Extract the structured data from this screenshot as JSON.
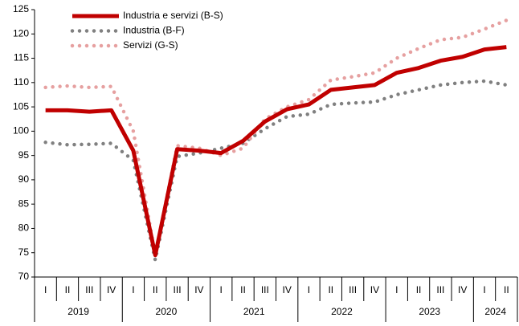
{
  "chart_data": {
    "type": "line",
    "categories": [
      "I",
      "II",
      "III",
      "IV",
      "I",
      "II",
      "III",
      "IV",
      "I",
      "II",
      "III",
      "IV",
      "I",
      "II",
      "III",
      "IV",
      "I",
      "II",
      "III",
      "IV",
      "I",
      "II"
    ],
    "years": [
      "2019",
      "2020",
      "2021",
      "2022",
      "2023",
      "2024"
    ],
    "series": [
      {
        "name": "Industria e servizi (B-S)",
        "color": "#c00000",
        "style": "solid",
        "values": [
          104.3,
          104.3,
          104.0,
          104.3,
          96,
          74.5,
          96.3,
          96,
          95.5,
          98,
          102,
          104.5,
          105.5,
          108.5,
          109,
          109.5,
          112,
          113,
          114.5,
          115.3,
          116.8,
          117.3
        ]
      },
      {
        "name": "Industria (B-F)",
        "color": "#808080",
        "style": "dotted",
        "values": [
          97.7,
          97.2,
          97.3,
          97.5,
          94,
          73.5,
          94.8,
          95.5,
          96.5,
          97.5,
          100.5,
          103,
          103.5,
          105.5,
          105.8,
          106,
          107.5,
          108.5,
          109.5,
          110,
          110.3,
          109.5
        ]
      },
      {
        "name": "Servizi (G-S)",
        "color": "#e6a0a0",
        "style": "dotted",
        "values": [
          109,
          109.3,
          109,
          109.2,
          100,
          74.5,
          97,
          96.5,
          95,
          96.5,
          102.5,
          105,
          106.5,
          110.5,
          111.2,
          112,
          115,
          117,
          118.8,
          119.3,
          121,
          122.8
        ]
      }
    ],
    "ylim": [
      70,
      125
    ],
    "yticks": [
      70,
      75,
      80,
      85,
      90,
      95,
      100,
      105,
      110,
      115,
      120,
      125
    ],
    "legend": "top-left"
  }
}
